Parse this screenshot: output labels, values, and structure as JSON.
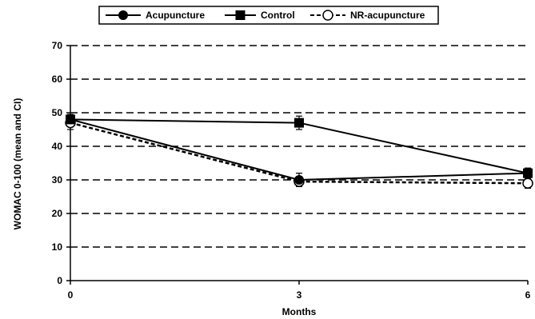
{
  "chart_data": {
    "type": "line",
    "title": "",
    "xlabel": "Months",
    "ylabel": "WOMAC 0-100 (mean and CI)",
    "x": [
      0,
      3,
      6
    ],
    "xticks": [
      "0",
      "3",
      "6"
    ],
    "xlim": [
      0,
      6
    ],
    "ylim": [
      0,
      70
    ],
    "yticks": [
      "0",
      "10",
      "20",
      "30",
      "40",
      "50",
      "60",
      "70"
    ],
    "grid": "horizontal-dashed",
    "legend": "top-center",
    "series": [
      {
        "name": "Acupuncture",
        "values": [
          48,
          30,
          32
        ],
        "ci_low": [
          46.5,
          28,
          30.5
        ],
        "ci_high": [
          49.5,
          32,
          33.5
        ],
        "marker": "circle-filled",
        "line": "solid",
        "color": "#000000"
      },
      {
        "name": "Control",
        "values": [
          48,
          47,
          32
        ],
        "ci_low": [
          46.5,
          45,
          30.5
        ],
        "ci_high": [
          49.5,
          49,
          33.5
        ],
        "marker": "square-filled",
        "line": "solid",
        "color": "#000000"
      },
      {
        "name": "NR-acupuncture",
        "values": [
          47,
          29.5,
          29
        ],
        "ci_low": [
          45,
          28,
          27.5
        ],
        "ci_high": [
          49,
          31,
          30.5
        ],
        "marker": "circle-open",
        "line": "dashed",
        "color": "#000000"
      }
    ]
  }
}
